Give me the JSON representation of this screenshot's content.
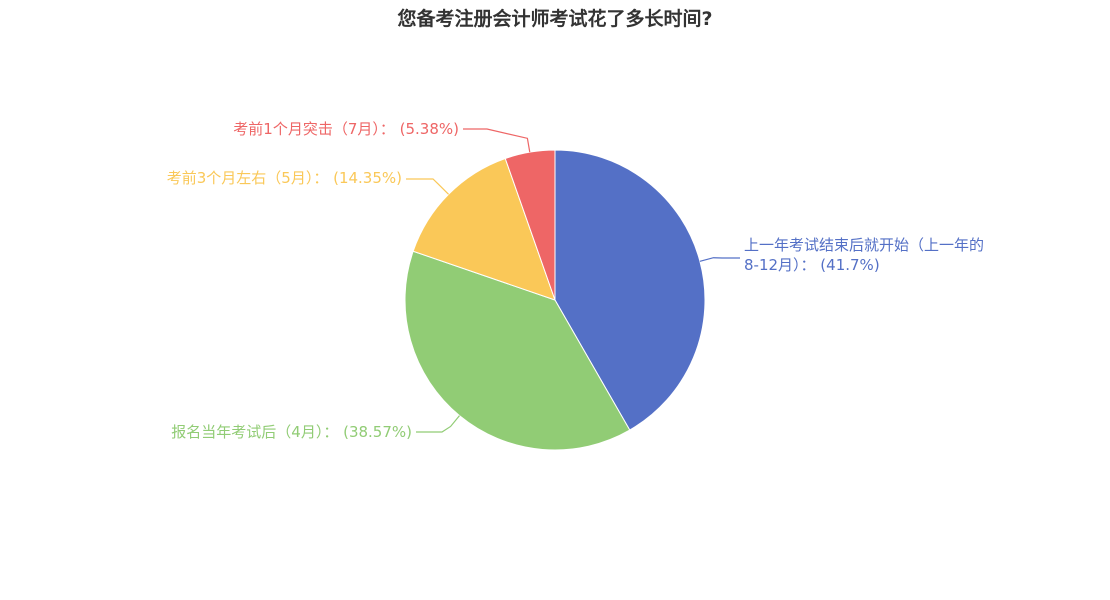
{
  "chart_data": {
    "type": "pie",
    "title": "您备考注册会计师考试花了多长时间?",
    "slices": [
      {
        "label": "上一年考试结束后就开始（上一年的8-12月）：",
        "value": 41.7,
        "percent_label": "(41.7%)",
        "color": "#5470c6"
      },
      {
        "label": "报名当年考试后（4月）：",
        "value": 38.57,
        "percent_label": "(38.57%)",
        "color": "#91cc75"
      },
      {
        "label": "考前3个月左右（5月）：",
        "value": 14.35,
        "percent_label": "(14.35%)",
        "color": "#fac858"
      },
      {
        "label": "考前1个月突击（7月）：",
        "value": 5.38,
        "percent_label": "(5.38%)",
        "color": "#ee6666"
      }
    ]
  }
}
